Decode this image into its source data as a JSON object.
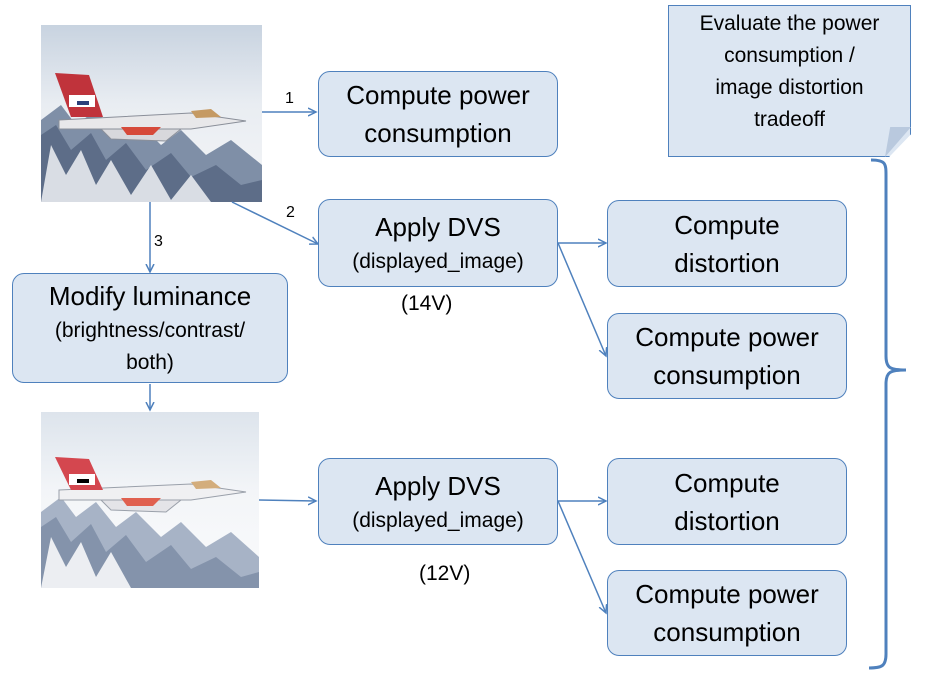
{
  "note": {
    "lines": [
      "Evaluate the power",
      "consumption /",
      "image distortion",
      "tradeoff"
    ]
  },
  "boxes": {
    "compute_power_top": [
      "Compute power",
      "consumption"
    ],
    "apply_dvs_top": [
      "Apply DVS",
      "(displayed_image)"
    ],
    "compute_distortion_mid": [
      "Compute",
      "distortion"
    ],
    "compute_power_mid": [
      "Compute power",
      "consumption"
    ],
    "modify_luminance": [
      "Modify luminance",
      "(brightness/contrast/",
      "both)"
    ],
    "apply_dvs_bottom": [
      "Apply DVS",
      "(displayed_image)"
    ],
    "compute_distortion_bottom": [
      "Compute",
      "distortion"
    ],
    "compute_power_bottom": [
      "Compute power",
      "consumption"
    ]
  },
  "labels": {
    "step1": "1",
    "step2": "2",
    "step3": "3",
    "voltage_top": "(14V)",
    "voltage_bottom": "(12V)"
  },
  "colors": {
    "box_fill": "#dce6f2",
    "box_border": "#4f81bd",
    "arrow": "#4f81bd"
  }
}
